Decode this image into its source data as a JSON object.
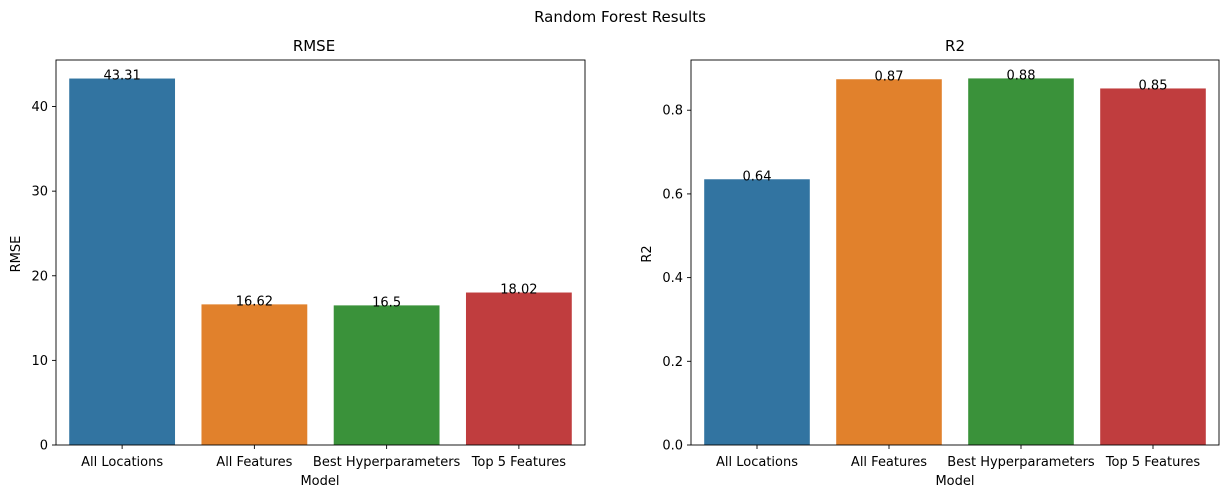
{
  "figure_title": "Random Forest Results",
  "colors": [
    "#3274a1",
    "#e1812c",
    "#3a923a",
    "#c03d3e"
  ],
  "chart_data": [
    {
      "type": "bar",
      "title": "RMSE",
      "xlabel": "Model",
      "ylabel": "RMSE",
      "categories": [
        "All Locations",
        "All Features",
        "Best Hyperparameters",
        "Top 5 Features"
      ],
      "values": [
        43.31,
        16.62,
        16.5,
        18.02
      ],
      "data_labels": [
        "43.31",
        "16.62",
        "16.5",
        "18.02"
      ],
      "ylim": [
        0,
        45.5
      ],
      "yticks": [
        0,
        10,
        20,
        30,
        40
      ],
      "ytick_labels": [
        "0",
        "10",
        "20",
        "30",
        "40"
      ],
      "grid": false,
      "legend": "none"
    },
    {
      "type": "bar",
      "title": "R2",
      "xlabel": "Model",
      "ylabel": "R2",
      "categories": [
        "All Locations",
        "All Features",
        "Best Hyperparameters",
        "Top 5 Features"
      ],
      "values": [
        0.635,
        0.874,
        0.876,
        0.852
      ],
      "data_labels": [
        "0.64",
        "0.87",
        "0.88",
        "0.85"
      ],
      "ylim": [
        0,
        0.92
      ],
      "yticks": [
        0,
        0.2,
        0.4,
        0.6,
        0.8
      ],
      "ytick_labels": [
        "0.0",
        "0.2",
        "0.4",
        "0.6",
        "0.8"
      ],
      "grid": false,
      "legend": "none"
    }
  ]
}
